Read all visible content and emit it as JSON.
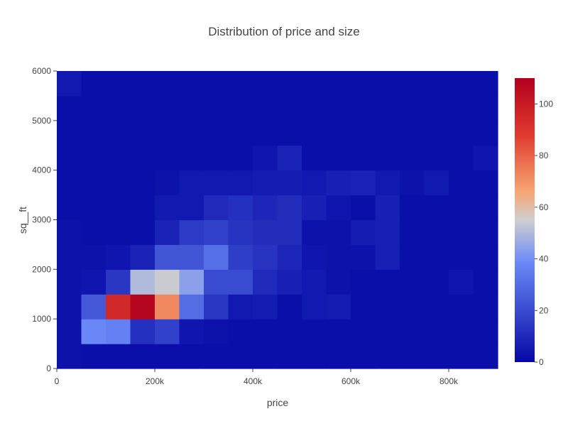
{
  "chart_data": {
    "type": "heatmap",
    "title": "Distribution of price and size",
    "xlabel": "price",
    "ylabel": "sq__ft",
    "x_tick_labels": [
      "0",
      "200k",
      "400k",
      "600k",
      "800k"
    ],
    "y_tick_labels": [
      "0",
      "1000",
      "2000",
      "3000",
      "4000",
      "5000",
      "6000"
    ],
    "colorbar_tick_labels": [
      "0",
      "20",
      "40",
      "60",
      "80",
      "100"
    ],
    "xlim": [
      0,
      900000
    ],
    "ylim": [
      0,
      6000
    ],
    "x_bin_size": 50000,
    "y_bin_size": 500,
    "z_range": [
      0,
      110
    ],
    "colorscale": [
      [
        0.0,
        "#0508a5"
      ],
      [
        0.35,
        "#6a89f7"
      ],
      [
        0.5,
        "#cfcfcf"
      ],
      [
        0.6,
        "#f7a673"
      ],
      [
        0.8,
        "#e03a2f"
      ],
      [
        1.0,
        "#b2001d"
      ]
    ],
    "z": [
      [
        3,
        2,
        2,
        2,
        2,
        2,
        2,
        2,
        2,
        2,
        2,
        2,
        2,
        2,
        2,
        2,
        2,
        2
      ],
      [
        3,
        38,
        36,
        12,
        17,
        4,
        3,
        2,
        2,
        2,
        2,
        2,
        2,
        2,
        2,
        2,
        2,
        2
      ],
      [
        3,
        24,
        95,
        108,
        72,
        30,
        14,
        5,
        6,
        2,
        5,
        6,
        2,
        2,
        2,
        2,
        2,
        2
      ],
      [
        3,
        4,
        14,
        50,
        54,
        44,
        20,
        20,
        10,
        7,
        5,
        3,
        2,
        2,
        2,
        2,
        4,
        2
      ],
      [
        3,
        3,
        4,
        8,
        23,
        23,
        31,
        16,
        13,
        9,
        4,
        3,
        3,
        7,
        2,
        2,
        2,
        2
      ],
      [
        3,
        2,
        2,
        2,
        8,
        15,
        17,
        13,
        11,
        11,
        3,
        3,
        6,
        7,
        2,
        2,
        2,
        2
      ],
      [
        2,
        2,
        2,
        2,
        5,
        5,
        10,
        12,
        9,
        11,
        7,
        4,
        2,
        7,
        2,
        2,
        2,
        2
      ],
      [
        2,
        2,
        2,
        2,
        3,
        5,
        5,
        5,
        6,
        6,
        5,
        7,
        8,
        5,
        3,
        5,
        2,
        2
      ],
      [
        2,
        2,
        2,
        2,
        2,
        2,
        2,
        2,
        4,
        8,
        2,
        2,
        2,
        2,
        2,
        2,
        2,
        4
      ],
      [
        2,
        2,
        2,
        2,
        2,
        2,
        2,
        2,
        2,
        2,
        2,
        2,
        2,
        2,
        2,
        2,
        2,
        2
      ],
      [
        2,
        2,
        2,
        2,
        2,
        2,
        2,
        2,
        2,
        2,
        2,
        2,
        2,
        2,
        2,
        2,
        2,
        2
      ],
      [
        5,
        2,
        2,
        2,
        2,
        2,
        2,
        2,
        2,
        2,
        2,
        2,
        2,
        2,
        2,
        2,
        2,
        2
      ]
    ]
  }
}
